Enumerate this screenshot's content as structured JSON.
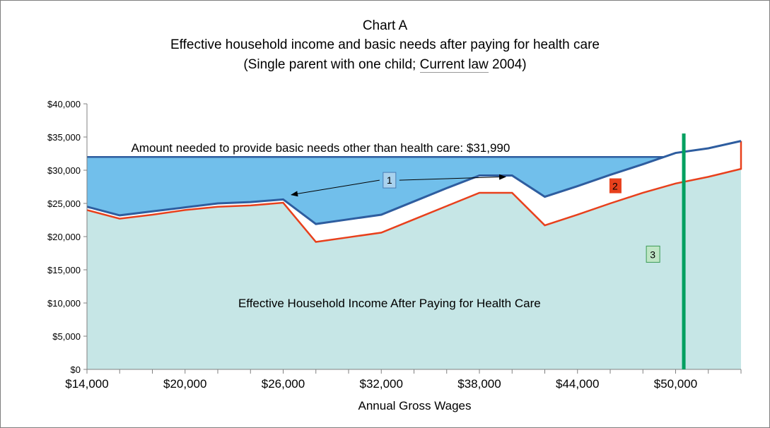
{
  "chart_data": {
    "type": "area",
    "title": "Chart A",
    "subtitle": "Effective household income and basic needs after paying for health care",
    "subtitle2": {
      "pre": "(Single parent with one child; ",
      "underlined": "Current law",
      "post": " 2004)"
    },
    "xlabel": "Annual Gross Wages",
    "ylabel": "",
    "xlim": [
      14000,
      54000
    ],
    "ylim": [
      0,
      40000
    ],
    "x_ticks": [
      14000,
      16000,
      18000,
      20000,
      22000,
      24000,
      26000,
      28000,
      30000,
      32000,
      34000,
      36000,
      38000,
      40000,
      42000,
      44000,
      46000,
      48000,
      50000,
      52000,
      54000
    ],
    "x_tick_labels": [
      {
        "value": 14000,
        "label": "$14,000"
      },
      {
        "value": 20000,
        "label": "$20,000"
      },
      {
        "value": 26000,
        "label": "$26,000"
      },
      {
        "value": 32000,
        "label": "$32,000"
      },
      {
        "value": 38000,
        "label": "$38,000"
      },
      {
        "value": 44000,
        "label": "$44,000"
      },
      {
        "value": 50000,
        "label": "$50,000"
      }
    ],
    "y_ticks": [
      {
        "value": 0,
        "label": "$0"
      },
      {
        "value": 5000,
        "label": "$5,000"
      },
      {
        "value": 10000,
        "label": "$10,000"
      },
      {
        "value": 15000,
        "label": "$15,000"
      },
      {
        "value": 20000,
        "label": "$20,000"
      },
      {
        "value": 25000,
        "label": "$25,000"
      },
      {
        "value": 30000,
        "label": "$30,000"
      },
      {
        "value": 35000,
        "label": "$35,000"
      },
      {
        "value": 40000,
        "label": "$40,000"
      }
    ],
    "basic_needs": 31990,
    "x": [
      14000,
      16000,
      18000,
      20000,
      22000,
      24000,
      26000,
      28000,
      30000,
      32000,
      34000,
      36000,
      38000,
      40000,
      42000,
      44000,
      46000,
      48000,
      50000,
      52000,
      54000
    ],
    "series": [
      {
        "key": "effective_income",
        "color": "#2e5d9f",
        "values": [
          24500,
          23200,
          23800,
          24400,
          25000,
          25200,
          25600,
          21900,
          22600,
          23300,
          25300,
          27300,
          29200,
          29200,
          26000,
          27600,
          29300,
          30900,
          32600,
          33300,
          34400
        ]
      },
      {
        "key": "income_red",
        "color": "#e8401c",
        "values": [
          24000,
          22700,
          23300,
          24000,
          24500,
          24700,
          25100,
          19200,
          19900,
          20600,
          22600,
          24600,
          26600,
          26600,
          21700,
          23300,
          25000,
          26600,
          28000,
          29000,
          30200
        ]
      }
    ],
    "extra_points": [
      {
        "series": "income_red",
        "x": 54000,
        "y": 34400
      }
    ],
    "area_colors": {
      "lower": "#c6e6e6",
      "gap": "#71bfeb",
      "frame": "#7f7f7f",
      "grid_axis": "#808080"
    },
    "vertical_line": {
      "x": 50500,
      "color": "#00a060"
    },
    "annotations": {
      "basic_needs_label": "Amount needed to provide basic needs other than health care: $31,990",
      "area_label": "Effective Household Income After Paying for Health Care",
      "label_1": "1",
      "label_2": "2",
      "label_3": "3",
      "label_1_arrow_targets": [
        {
          "x": 26500,
          "y": 26300
        },
        {
          "x": 39600,
          "y": 29000
        }
      ],
      "label_1_anchor": {
        "x": 32500,
        "y": 28500
      },
      "label_2_anchor": {
        "x": 46300,
        "y": 27600
      },
      "label_3_anchor": {
        "x": 48600,
        "y": 17300
      },
      "basic_needs_label_anchor": {
        "x": 16700,
        "y": 33400
      },
      "area_label_anchor": {
        "x": 32500,
        "y": 10000
      },
      "box_colors": {
        "label_1": "#a9d2ee",
        "label_2": "#e8401c",
        "label_3": "#bfe6c5"
      }
    }
  }
}
